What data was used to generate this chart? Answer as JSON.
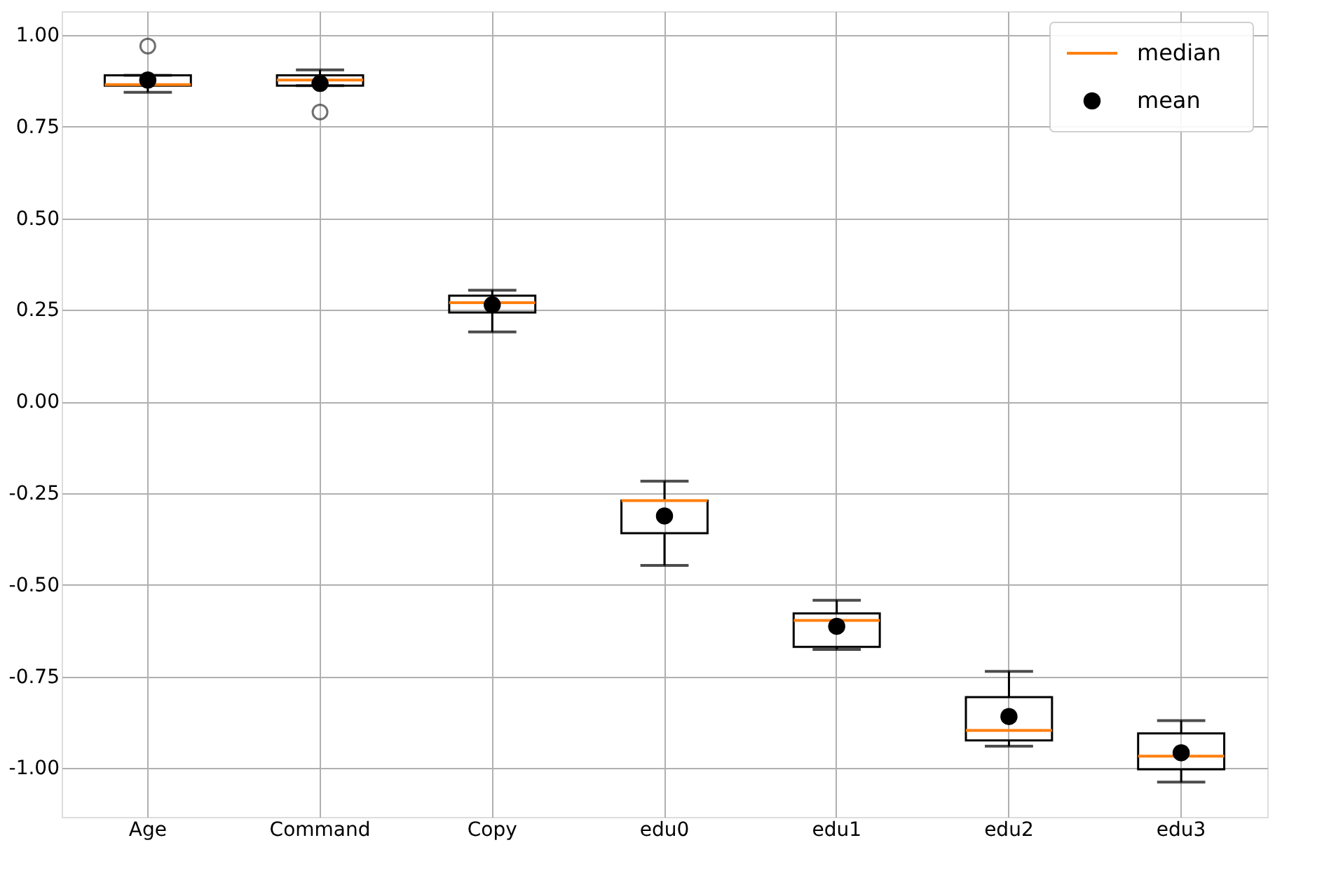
{
  "chart_data": {
    "type": "box",
    "categories": [
      "Age",
      "Command",
      "Copy",
      "edu0",
      "edu1",
      "edu2",
      "edu3"
    ],
    "series": [
      {
        "name": "median",
        "color": "#ff7f0e",
        "boxes": [
          {
            "low": 0.844,
            "q1": 0.862,
            "median": 0.865,
            "q3": 0.89,
            "high": 0.89,
            "outliers": [
              0.97
            ]
          },
          {
            "low": 0.862,
            "q1": 0.862,
            "median": 0.877,
            "q3": 0.89,
            "high": 0.905,
            "outliers": [
              0.79
            ]
          },
          {
            "low": 0.19,
            "q1": 0.243,
            "median": 0.27,
            "q3": 0.289,
            "high": 0.304
          },
          {
            "low": -0.447,
            "q1": -0.359,
            "median": -0.27,
            "q3": -0.27,
            "high": -0.217
          },
          {
            "low": -0.676,
            "q1": -0.669,
            "median": -0.597,
            "q3": -0.578,
            "high": -0.542
          },
          {
            "low": -0.94,
            "q1": -0.924,
            "median": -0.897,
            "q3": -0.806,
            "high": -0.736
          },
          {
            "low": -1.038,
            "q1": -1.003,
            "median": -0.967,
            "q3": -0.905,
            "high": -0.87
          }
        ]
      },
      {
        "type": "scatter",
        "name": "mean",
        "color": "#000000",
        "marker": "circle",
        "x": [
          "Age",
          "Command",
          "Copy",
          "edu0",
          "edu1",
          "edu2",
          "edu3"
        ],
        "values": [
          0.877,
          0.868,
          0.264,
          -0.312,
          -0.613,
          -0.859,
          -0.958
        ]
      }
    ],
    "ylim": [
      -1.133,
      1.065
    ],
    "yticks": [
      {
        "value": -1,
        "label": "-1.00"
      },
      {
        "value": -0.75,
        "label": "-0.75"
      },
      {
        "value": -0.5,
        "label": "-0.50"
      },
      {
        "value": -0.25,
        "label": "-0.25"
      },
      {
        "value": 0,
        "label": "0.00"
      },
      {
        "value": 0.25,
        "label": "0.25"
      },
      {
        "value": 0.5,
        "label": "0.50"
      },
      {
        "value": 0.75,
        "label": "0.75"
      },
      {
        "value": 1,
        "label": "1.00"
      }
    ],
    "grid": true,
    "legend": "top right"
  }
}
